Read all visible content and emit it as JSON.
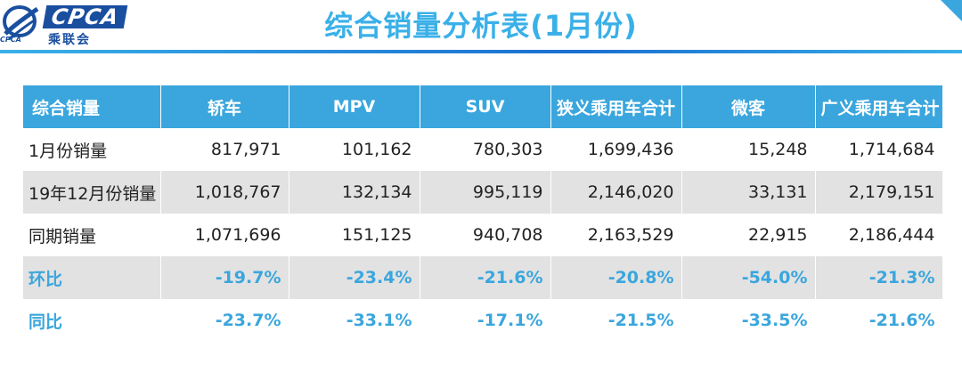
{
  "header": {
    "brand": "CPCA",
    "brand_cn": "乘联会",
    "brand_small": "CPCA",
    "title": "综合销量分析表(1月份)"
  },
  "table": {
    "columns": [
      "综合销量",
      "轿车",
      "MPV",
      "SUV",
      "狭义乘用车合计",
      "微客",
      "广义乘用车合计"
    ],
    "rows": [
      {
        "label": "1月份销量",
        "values": [
          "817,971",
          "101,162",
          "780,303",
          "1,699,436",
          "15,248",
          "1,714,684"
        ]
      },
      {
        "label": "19年12月份销量",
        "values": [
          "1,018,767",
          "132,134",
          "995,119",
          "2,146,020",
          "33,131",
          "2,179,151"
        ]
      },
      {
        "label": "同期销量",
        "values": [
          "1,071,696",
          "151,125",
          "940,708",
          "2,163,529",
          "22,915",
          "2,186,444"
        ]
      },
      {
        "label": "环比",
        "values": [
          "-19.7%",
          "-23.4%",
          "-21.6%",
          "-20.8%",
          "-54.0%",
          "-21.3%"
        ]
      },
      {
        "label": "同比",
        "values": [
          "-23.7%",
          "-33.1%",
          "-17.1%",
          "-21.5%",
          "-33.5%",
          "-21.6%"
        ]
      }
    ]
  },
  "colors": {
    "header_bg": "#3aa6dd",
    "title": "#3ab0e8",
    "percent_text": "#3aa6dd",
    "brand": "#1a4fa0",
    "band_gray": "#e2e2e2"
  },
  "icons": {
    "logo": "cpca-logo-icon"
  }
}
